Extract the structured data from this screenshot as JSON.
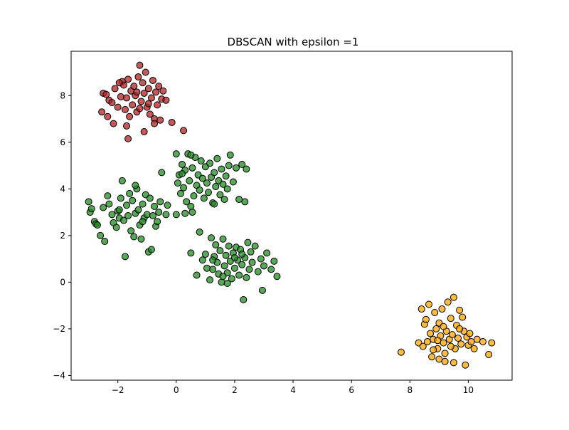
{
  "chart_data": {
    "type": "scatter",
    "title": "DBSCAN with epsilon =1",
    "xlabel": "",
    "ylabel": "",
    "xlim": [
      -3.6,
      11.5
    ],
    "ylim": [
      -4.2,
      9.9
    ],
    "xticks": [
      -2,
      0,
      2,
      4,
      6,
      8,
      10
    ],
    "yticks": [
      -4,
      -2,
      0,
      2,
      4,
      6,
      8
    ],
    "grid": false,
    "legend": "none",
    "series": [
      {
        "color": "#b22222",
        "points": [
          [
            -2.5,
            8.1
          ],
          [
            -2.4,
            8.05
          ],
          [
            -2.3,
            7.8
          ],
          [
            -2.2,
            7.7
          ],
          [
            -2.1,
            8.3
          ],
          [
            -2.0,
            7.5
          ],
          [
            -1.9,
            7.95
          ],
          [
            -1.85,
            8.6
          ],
          [
            -1.8,
            8.45
          ],
          [
            -1.75,
            7.4
          ],
          [
            -1.7,
            7.9
          ],
          [
            -1.65,
            8.7
          ],
          [
            -1.6,
            7.1
          ],
          [
            -1.55,
            8.2
          ],
          [
            -1.5,
            7.6
          ],
          [
            -1.45,
            8.4
          ],
          [
            -1.4,
            8.0
          ],
          [
            -1.35,
            7.3
          ],
          [
            -1.3,
            8.8
          ],
          [
            -1.25,
            9.3
          ],
          [
            -1.2,
            7.75
          ],
          [
            -1.15,
            8.55
          ],
          [
            -1.1,
            8.1
          ],
          [
            -1.05,
            9.0
          ],
          [
            -1.0,
            7.5
          ],
          [
            -0.95,
            8.3
          ],
          [
            -0.9,
            7.2
          ],
          [
            -0.85,
            7.9
          ],
          [
            -0.8,
            8.65
          ],
          [
            -0.75,
            7.0
          ],
          [
            -0.7,
            8.15
          ],
          [
            -0.65,
            7.6
          ],
          [
            -0.6,
            8.4
          ],
          [
            -0.55,
            6.95
          ],
          [
            -0.5,
            7.85
          ],
          [
            -0.45,
            8.2
          ],
          [
            -0.35,
            7.8
          ],
          [
            -2.55,
            7.3
          ],
          [
            -2.35,
            7.1
          ],
          [
            -2.15,
            6.8
          ],
          [
            -1.7,
            6.7
          ],
          [
            -1.65,
            6.15
          ],
          [
            -1.1,
            6.45
          ],
          [
            -0.75,
            6.8
          ],
          [
            -0.15,
            6.85
          ],
          [
            0.25,
            6.5
          ],
          [
            -1.95,
            8.55
          ],
          [
            -1.35,
            8.15
          ],
          [
            -1.25,
            7.45
          ],
          [
            -0.95,
            7.65
          ]
        ]
      },
      {
        "color": "#228b22",
        "points": [
          [
            -3.0,
            3.45
          ],
          [
            -2.95,
            3.0
          ],
          [
            -2.8,
            2.6
          ],
          [
            -2.75,
            2.5
          ],
          [
            -2.6,
            2.0
          ],
          [
            -2.5,
            3.2
          ],
          [
            -2.45,
            1.75
          ],
          [
            -2.35,
            3.7
          ],
          [
            -2.2,
            2.9
          ],
          [
            -2.15,
            2.55
          ],
          [
            -2.05,
            2.35
          ],
          [
            -2.0,
            3.05
          ],
          [
            -1.95,
            2.75
          ],
          [
            -1.9,
            3.6
          ],
          [
            -1.85,
            4.35
          ],
          [
            -1.8,
            2.65
          ],
          [
            -1.75,
            1.1
          ],
          [
            -1.7,
            3.3
          ],
          [
            -1.65,
            2.85
          ],
          [
            -1.6,
            3.8
          ],
          [
            -1.55,
            2.2
          ],
          [
            -1.5,
            3.5
          ],
          [
            -1.45,
            1.95
          ],
          [
            -1.4,
            2.95
          ],
          [
            -1.35,
            4.0
          ],
          [
            -1.3,
            3.1
          ],
          [
            -1.25,
            2.45
          ],
          [
            -1.2,
            1.85
          ],
          [
            -1.15,
            3.35
          ],
          [
            -1.1,
            2.75
          ],
          [
            -1.05,
            3.75
          ],
          [
            -1.0,
            2.9
          ],
          [
            -0.95,
            1.3
          ],
          [
            -0.9,
            3.6
          ],
          [
            -0.85,
            1.4
          ],
          [
            -0.8,
            2.85
          ],
          [
            -0.75,
            3.25
          ],
          [
            -0.7,
            2.4
          ],
          [
            -0.65,
            2.6
          ],
          [
            -0.6,
            3.0
          ],
          [
            -0.55,
            3.45
          ],
          [
            -0.5,
            4.7
          ],
          [
            -0.35,
            2.9
          ],
          [
            -0.3,
            3.3
          ],
          [
            -2.9,
            3.15
          ],
          [
            -2.7,
            2.45
          ],
          [
            -2.3,
            3.35
          ],
          [
            -1.95,
            3.1
          ],
          [
            -1.4,
            4.15
          ],
          [
            -1.15,
            2.6
          ],
          [
            0.0,
            5.5
          ],
          [
            0.05,
            4.25
          ],
          [
            0.1,
            4.6
          ],
          [
            0.15,
            3.8
          ],
          [
            0.2,
            5.05
          ],
          [
            0.25,
            4.05
          ],
          [
            0.3,
            4.8
          ],
          [
            0.35,
            3.45
          ],
          [
            0.4,
            5.5
          ],
          [
            0.45,
            4.35
          ],
          [
            0.5,
            3.25
          ],
          [
            0.55,
            4.9
          ],
          [
            0.6,
            3.7
          ],
          [
            0.65,
            5.35
          ],
          [
            0.7,
            4.15
          ],
          [
            0.75,
            4.6
          ],
          [
            0.8,
            3.95
          ],
          [
            0.85,
            5.2
          ],
          [
            0.9,
            4.45
          ],
          [
            0.95,
            3.6
          ],
          [
            1.0,
            4.95
          ],
          [
            1.05,
            4.25
          ],
          [
            1.1,
            3.85
          ],
          [
            1.15,
            5.1
          ],
          [
            1.2,
            4.5
          ],
          [
            1.25,
            3.4
          ],
          [
            1.3,
            4.7
          ],
          [
            1.35,
            4.1
          ],
          [
            1.4,
            5.3
          ],
          [
            1.45,
            4.35
          ],
          [
            1.5,
            3.75
          ],
          [
            1.55,
            4.85
          ],
          [
            1.6,
            4.2
          ],
          [
            1.65,
            3.55
          ],
          [
            1.7,
            4.55
          ],
          [
            1.75,
            4.0
          ],
          [
            1.8,
            5.0
          ],
          [
            1.85,
            5.45
          ],
          [
            1.95,
            4.3
          ],
          [
            2.05,
            4.9
          ],
          [
            2.15,
            3.55
          ],
          [
            2.25,
            5.05
          ],
          [
            2.35,
            3.45
          ],
          [
            2.4,
            4.85
          ],
          [
            0.0,
            2.9
          ],
          [
            0.3,
            2.95
          ],
          [
            0.55,
            3.0
          ],
          [
            0.5,
            5.45
          ],
          [
            1.3,
            3.35
          ],
          [
            0.2,
            4.65
          ],
          [
            0.5,
            1.25
          ],
          [
            0.7,
            0.3
          ],
          [
            0.8,
            2.15
          ],
          [
            0.9,
            0.95
          ],
          [
            1.0,
            1.2
          ],
          [
            1.05,
            0.6
          ],
          [
            1.15,
            0.1
          ],
          [
            1.2,
            1.9
          ],
          [
            1.25,
            0.55
          ],
          [
            1.3,
            1.1
          ],
          [
            1.35,
            1.6
          ],
          [
            1.4,
            0.85
          ],
          [
            1.45,
            0.35
          ],
          [
            1.5,
            1.35
          ],
          [
            1.55,
            0.0
          ],
          [
            1.6,
            1.85
          ],
          [
            1.65,
            0.7
          ],
          [
            1.7,
            1.15
          ],
          [
            1.75,
            0.4
          ],
          [
            1.8,
            1.55
          ],
          [
            1.85,
            0.9
          ],
          [
            1.9,
            0.15
          ],
          [
            1.95,
            1.25
          ],
          [
            2.0,
            0.6
          ],
          [
            2.05,
            1.5
          ],
          [
            2.1,
            0.95
          ],
          [
            2.15,
            0.3
          ],
          [
            2.2,
            1.4
          ],
          [
            2.25,
            0.75
          ],
          [
            2.3,
            -0.75
          ],
          [
            2.35,
            1.05
          ],
          [
            2.4,
            0.2
          ],
          [
            2.45,
            1.7
          ],
          [
            2.5,
            0.55
          ],
          [
            2.55,
            1.3
          ],
          [
            2.6,
            0.85
          ],
          [
            2.7,
            1.55
          ],
          [
            2.8,
            0.45
          ],
          [
            2.9,
            1.0
          ],
          [
            2.95,
            -0.35
          ],
          [
            3.0,
            0.7
          ],
          [
            3.1,
            1.25
          ],
          [
            3.25,
            0.55
          ],
          [
            3.35,
            0.9
          ],
          [
            3.45,
            0.25
          ],
          [
            1.75,
            -0.05
          ],
          [
            2.0,
            1.05
          ],
          [
            1.25,
            0.95
          ],
          [
            1.6,
            0.25
          ],
          [
            2.25,
            1.2
          ]
        ]
      },
      {
        "color": "#ffa500",
        "points": [
          [
            7.7,
            -3.0
          ],
          [
            8.3,
            -2.6
          ],
          [
            8.4,
            -1.15
          ],
          [
            8.45,
            -2.75
          ],
          [
            8.5,
            -1.8
          ],
          [
            8.55,
            -1.6
          ],
          [
            8.6,
            -2.55
          ],
          [
            8.65,
            -0.95
          ],
          [
            8.7,
            -2.2
          ],
          [
            8.75,
            -3.2
          ],
          [
            8.8,
            -2.45
          ],
          [
            8.85,
            -1.3
          ],
          [
            8.9,
            -2.0
          ],
          [
            8.95,
            -2.85
          ],
          [
            9.0,
            -1.75
          ],
          [
            9.05,
            -2.3
          ],
          [
            9.1,
            -1.15
          ],
          [
            9.15,
            -2.6
          ],
          [
            9.2,
            -3.05
          ],
          [
            9.25,
            -2.1
          ],
          [
            9.3,
            -0.85
          ],
          [
            9.35,
            -2.45
          ],
          [
            9.4,
            -1.55
          ],
          [
            9.45,
            -2.25
          ],
          [
            9.5,
            -0.65
          ],
          [
            9.55,
            -2.85
          ],
          [
            9.6,
            -1.85
          ],
          [
            9.65,
            -2.4
          ],
          [
            9.7,
            -1.2
          ],
          [
            9.75,
            -2.65
          ],
          [
            9.8,
            -1.5
          ],
          [
            9.85,
            -2.1
          ],
          [
            9.9,
            -3.55
          ],
          [
            9.95,
            -2.35
          ],
          [
            10.0,
            -2.7
          ],
          [
            10.05,
            -2.2
          ],
          [
            10.1,
            -2.55
          ],
          [
            10.2,
            -2.85
          ],
          [
            10.3,
            -2.45
          ],
          [
            10.5,
            -2.55
          ],
          [
            10.7,
            -3.1
          ],
          [
            10.8,
            -2.6
          ],
          [
            8.8,
            -2.9
          ],
          [
            9.0,
            -3.3
          ],
          [
            9.2,
            -3.4
          ],
          [
            9.5,
            -3.45
          ],
          [
            9.7,
            -2.0
          ],
          [
            9.15,
            -1.9
          ],
          [
            8.95,
            -2.5
          ],
          [
            9.4,
            -2.75
          ]
        ]
      }
    ]
  }
}
